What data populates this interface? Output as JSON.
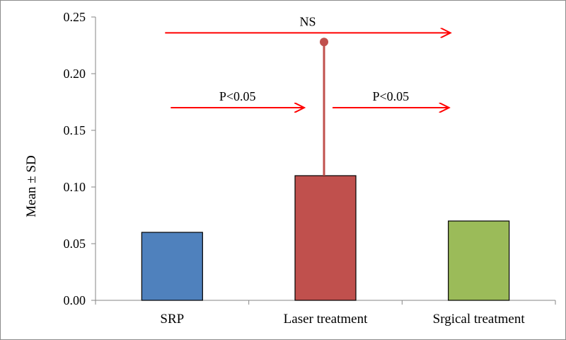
{
  "chart_data": {
    "type": "bar",
    "title": "",
    "xlabel": "",
    "ylabel": "Mean ± SD",
    "ylim": [
      0,
      0.25
    ],
    "yticks": [
      "0.00",
      "0.05",
      "0.10",
      "0.15",
      "0.20",
      "0.25"
    ],
    "ytick_values": [
      0,
      0.05,
      0.1,
      0.15,
      0.2,
      0.25
    ],
    "categories": [
      "SRP",
      "Laser treatment",
      "Srgical treatment"
    ],
    "values": [
      0.06,
      0.11,
      0.07
    ],
    "error_upper": [
      null,
      0.228,
      null
    ],
    "colors": [
      "#4f81bd",
      "#c0504d",
      "#9bbb59"
    ],
    "grid": false,
    "legend": "none",
    "annotations": [
      {
        "text": "NS",
        "from_category": 0,
        "to_category": 2,
        "level": 0.236,
        "color": "#ff0000"
      },
      {
        "text": "P<0.05",
        "from_category": 0,
        "to_category": 1,
        "level": 0.17,
        "color": "#ff0000"
      },
      {
        "text": "P<0.05",
        "from_category": 1,
        "to_category": 2,
        "level": 0.17,
        "color": "#ff0000"
      }
    ]
  }
}
